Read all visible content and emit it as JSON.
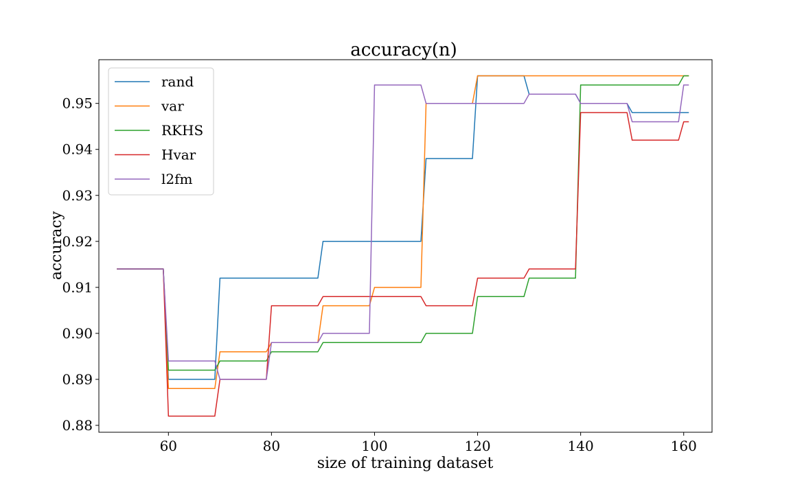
{
  "chart_data": {
    "type": "line",
    "title": "accuracy(n)",
    "xlabel": "size of training dataset",
    "ylabel": "accuracy",
    "xlim": [
      46.5,
      165.5
    ],
    "ylim": [
      0.8785,
      0.9595
    ],
    "xticks": [
      60,
      80,
      100,
      120,
      140,
      160
    ],
    "yticks": [
      0.88,
      0.89,
      0.9,
      0.91,
      0.92,
      0.93,
      0.94,
      0.95
    ],
    "ytick_labels": [
      "0.88",
      "0.89",
      "0.90",
      "0.91",
      "0.92",
      "0.93",
      "0.94",
      "0.95"
    ],
    "grid": false,
    "legend_position": "upper-left",
    "series": [
      {
        "name": "rand",
        "color": "#1f77b4",
        "points": [
          [
            50,
            0.914
          ],
          [
            59,
            0.914
          ],
          [
            60,
            0.89
          ],
          [
            69,
            0.89
          ],
          [
            70,
            0.912
          ],
          [
            89,
            0.912
          ],
          [
            90,
            0.92
          ],
          [
            109,
            0.92
          ],
          [
            110,
            0.938
          ],
          [
            119,
            0.938
          ],
          [
            120,
            0.956
          ],
          [
            129,
            0.956
          ],
          [
            130,
            0.952
          ],
          [
            139,
            0.952
          ],
          [
            140,
            0.95
          ],
          [
            149,
            0.95
          ],
          [
            150,
            0.948
          ],
          [
            161,
            0.948
          ]
        ]
      },
      {
        "name": "var",
        "color": "#ff7f0e",
        "points": [
          [
            50,
            0.914
          ],
          [
            59,
            0.914
          ],
          [
            60,
            0.888
          ],
          [
            69,
            0.888
          ],
          [
            70,
            0.896
          ],
          [
            79,
            0.896
          ],
          [
            80,
            0.898
          ],
          [
            89,
            0.898
          ],
          [
            90,
            0.906
          ],
          [
            99,
            0.906
          ],
          [
            100,
            0.91
          ],
          [
            109,
            0.91
          ],
          [
            110,
            0.95
          ],
          [
            119,
            0.95
          ],
          [
            120,
            0.956
          ],
          [
            161,
            0.956
          ]
        ]
      },
      {
        "name": "RKHS",
        "color": "#2ca02c",
        "points": [
          [
            50,
            0.914
          ],
          [
            59,
            0.914
          ],
          [
            60,
            0.892
          ],
          [
            69,
            0.892
          ],
          [
            70,
            0.894
          ],
          [
            79,
            0.894
          ],
          [
            80,
            0.896
          ],
          [
            89,
            0.896
          ],
          [
            90,
            0.898
          ],
          [
            109,
            0.898
          ],
          [
            110,
            0.9
          ],
          [
            119,
            0.9
          ],
          [
            120,
            0.908
          ],
          [
            129,
            0.908
          ],
          [
            130,
            0.912
          ],
          [
            139,
            0.912
          ],
          [
            140,
            0.954
          ],
          [
            159,
            0.954
          ],
          [
            160,
            0.956
          ],
          [
            161,
            0.956
          ]
        ]
      },
      {
        "name": "Hvar",
        "color": "#d62728",
        "points": [
          [
            50,
            0.914
          ],
          [
            59,
            0.914
          ],
          [
            60,
            0.882
          ],
          [
            69,
            0.882
          ],
          [
            70,
            0.89
          ],
          [
            79,
            0.89
          ],
          [
            80,
            0.906
          ],
          [
            89,
            0.906
          ],
          [
            90,
            0.908
          ],
          [
            109,
            0.908
          ],
          [
            110,
            0.906
          ],
          [
            119,
            0.906
          ],
          [
            120,
            0.912
          ],
          [
            129,
            0.912
          ],
          [
            130,
            0.914
          ],
          [
            139,
            0.914
          ],
          [
            140,
            0.948
          ],
          [
            149,
            0.948
          ],
          [
            150,
            0.942
          ],
          [
            159,
            0.942
          ],
          [
            160,
            0.946
          ],
          [
            161,
            0.946
          ]
        ]
      },
      {
        "name": "l2fm",
        "color": "#9467bd",
        "points": [
          [
            50,
            0.914
          ],
          [
            59,
            0.914
          ],
          [
            60,
            0.894
          ],
          [
            69,
            0.894
          ],
          [
            70,
            0.89
          ],
          [
            79,
            0.89
          ],
          [
            80,
            0.898
          ],
          [
            89,
            0.898
          ],
          [
            90,
            0.9
          ],
          [
            99,
            0.9
          ],
          [
            100,
            0.954
          ],
          [
            109,
            0.954
          ],
          [
            110,
            0.95
          ],
          [
            129,
            0.95
          ],
          [
            130,
            0.952
          ],
          [
            139,
            0.952
          ],
          [
            140,
            0.95
          ],
          [
            149,
            0.95
          ],
          [
            150,
            0.946
          ],
          [
            159,
            0.946
          ],
          [
            160,
            0.954
          ],
          [
            161,
            0.954
          ]
        ]
      }
    ]
  }
}
